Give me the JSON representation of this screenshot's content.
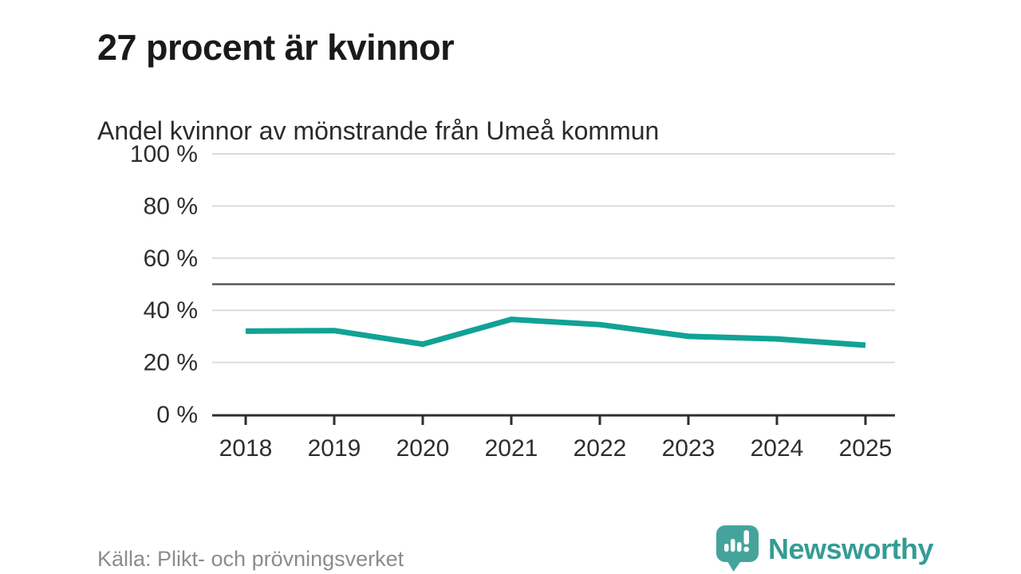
{
  "header": {
    "title": "27 procent är kvinnor",
    "subtitle": "Andel kvinnor av mönstrande från Umeå kommun"
  },
  "footer": {
    "source": "Källa: Plikt- och prövningsverket",
    "brand": "Newsworthy"
  },
  "colors": {
    "accent_line": "#11a296",
    "brand_teal": "#44a49c",
    "brand_text_teal": "#359c94",
    "gridline": "#dbdbdb",
    "reference_line": "#57585a",
    "axis": "#2e2e2e",
    "muted_text": "#8c8c8c"
  },
  "chart_data": {
    "type": "line",
    "x": [
      2018,
      2019,
      2020,
      2021,
      2022,
      2023,
      2024,
      2025
    ],
    "x_labels": [
      "2018",
      "2019",
      "2020",
      "2021",
      "2022",
      "2023",
      "2024",
      "2025"
    ],
    "series": [
      {
        "name": "Andel kvinnor av mönstrande",
        "values": [
          32,
          32.2,
          27,
          36.5,
          34.5,
          30,
          29,
          26.6
        ]
      }
    ],
    "title": "Andel kvinnor av mönstrande från Umeå kommun",
    "xlabel": "",
    "ylabel": "",
    "ylim": [
      0,
      100
    ],
    "yticks": [
      0,
      20,
      40,
      60,
      80,
      100
    ],
    "ytick_labels": [
      "0 %",
      "20 %",
      "40 %",
      "60 %",
      "80 %",
      "100 %"
    ],
    "reference_line": 50,
    "grid": "horizontal",
    "legend": "none",
    "line_color": "#11a296"
  }
}
